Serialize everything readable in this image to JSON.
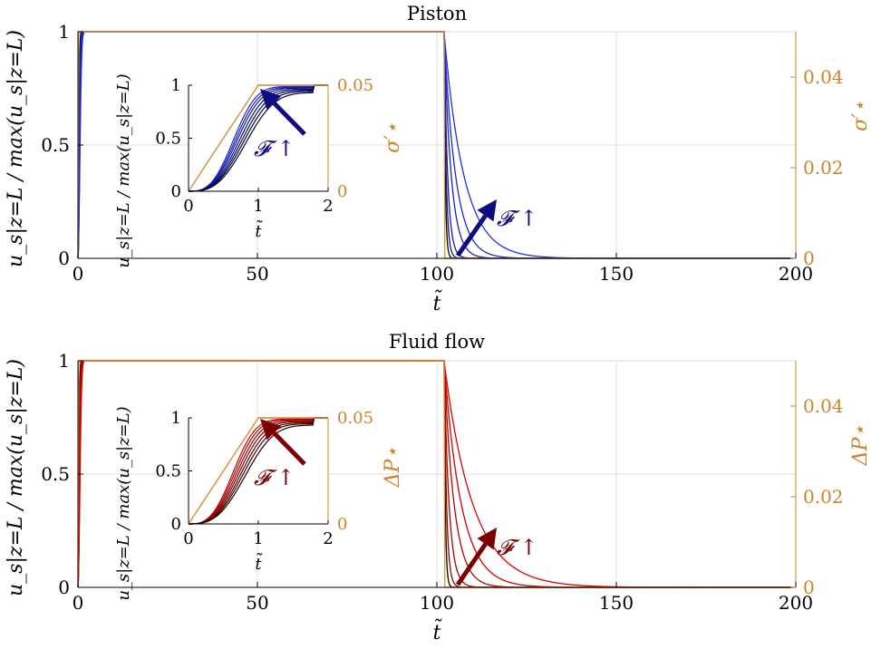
{
  "colors": {
    "axis": "#000000",
    "right_axis": "#c8862a",
    "grid": "#dcdcdc",
    "gold_line": "#d99a3a",
    "blue_dark": "#0d0d80",
    "blue_bright": "#1f2fe6",
    "red_dark": "#7a0000",
    "red_bright": "#e00000",
    "black": "#000000"
  },
  "chart_data": [
    {
      "id": "piston",
      "type": "line",
      "title": "Piston",
      "xlabel": "t̃",
      "ylabel": "u_s|z=L / max(u_s|z=L)",
      "y2label": "σ′⋆",
      "xlim": [
        0,
        200
      ],
      "ylim": [
        0,
        1
      ],
      "y2lim": [
        0,
        0.05
      ],
      "xticks": [
        "0",
        "50",
        "100",
        "150",
        "200"
      ],
      "yticks": [
        "0",
        "0.5",
        "1"
      ],
      "y2ticks": [
        "0",
        "0.02",
        "0.04"
      ],
      "grid": true,
      "annotation": "𝓕 ↑",
      "load_series": {
        "x": [
          0,
          0.2,
          102,
          102.2,
          200
        ],
        "y": [
          0,
          0.05,
          0.05,
          0,
          0
        ]
      },
      "decay_tau": [
        0.35,
        0.6,
        1.0,
        2.0,
        3.2,
        5.5
      ],
      "rise_tau": [
        0.25,
        0.3,
        0.35,
        0.4,
        0.45,
        0.5
      ],
      "inset": {
        "xlabel": "t̃",
        "ylabel": "u_s|z=L / max(u_s|z=L)",
        "y2label": "σ′⋆",
        "xlim": [
          0,
          2
        ],
        "ylim": [
          0,
          1
        ],
        "y2lim": [
          0,
          0.05
        ],
        "xticks": [
          "0",
          "1",
          "2"
        ],
        "yticks": [
          "0",
          "0.5",
          "1"
        ],
        "y2ticks": [
          "0",
          "0.05"
        ],
        "annotation": "𝓕 ↑",
        "ramp_series": {
          "x": [
            0,
            1,
            2
          ],
          "y": [
            0,
            0.05,
            0.05
          ]
        },
        "curve_lag": [
          0.05,
          0.12,
          0.2,
          0.28,
          0.38,
          0.48,
          0.58,
          0.7
        ]
      }
    },
    {
      "id": "fluid_flow",
      "type": "line",
      "title": "Fluid flow",
      "xlabel": "t̃",
      "ylabel": "u_s|z=L / max(u_s|z=L)",
      "y2label": "ΔP⋆",
      "xlim": [
        0,
        200
      ],
      "ylim": [
        0,
        1
      ],
      "y2lim": [
        0,
        0.05
      ],
      "xticks": [
        "0",
        "50",
        "100",
        "150",
        "200"
      ],
      "yticks": [
        "0",
        "0.5",
        "1"
      ],
      "y2ticks": [
        "0",
        "0.02",
        "0.04"
      ],
      "grid": true,
      "annotation": "𝓕 ↑",
      "load_series": {
        "x": [
          0,
          0.2,
          102,
          102.2,
          200
        ],
        "y": [
          0,
          0.05,
          0.05,
          0,
          0
        ]
      },
      "decay_tau": [
        0.35,
        0.7,
        1.4,
        2.8,
        4.8,
        8.0
      ],
      "rise_tau": [
        0.25,
        0.3,
        0.35,
        0.4,
        0.45,
        0.5
      ],
      "inset": {
        "xlabel": "t̃",
        "ylabel": "u_s|z=L / max(u_s|z=L)",
        "y2label": "ΔP⋆",
        "xlim": [
          0,
          2
        ],
        "ylim": [
          0,
          1
        ],
        "y2lim": [
          0,
          0.05
        ],
        "xticks": [
          "0",
          "1",
          "2"
        ],
        "yticks": [
          "0",
          "0.5",
          "1"
        ],
        "y2ticks": [
          "0",
          "0.05"
        ],
        "annotation": "𝓕 ↑",
        "ramp_series": {
          "x": [
            0,
            1,
            2
          ],
          "y": [
            0,
            0.05,
            0.05
          ]
        },
        "curve_lag": [
          0.03,
          0.1,
          0.18,
          0.27,
          0.36,
          0.46,
          0.56,
          0.68
        ]
      }
    }
  ]
}
